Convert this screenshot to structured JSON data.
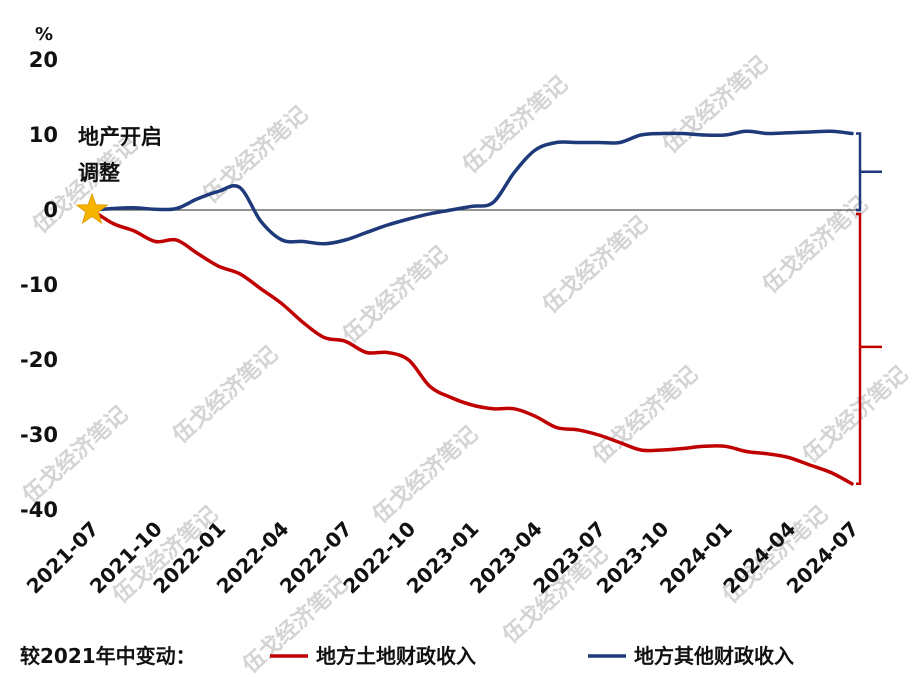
{
  "chart_data": {
    "type": "line",
    "unit": "%",
    "categories": [
      "2021-07",
      "2021-08",
      "2021-09",
      "2021-10",
      "2021-11",
      "2021-12",
      "2022-01",
      "2022-02",
      "2022-03",
      "2022-04",
      "2022-05",
      "2022-06",
      "2022-07",
      "2022-08",
      "2022-09",
      "2022-10",
      "2022-11",
      "2022-12",
      "2023-01",
      "2023-02",
      "2023-03",
      "2023-04",
      "2023-05",
      "2023-06",
      "2023-07",
      "2023-08",
      "2023-09",
      "2023-10",
      "2023-11",
      "2023-12",
      "2024-01",
      "2024-02",
      "2024-03",
      "2024-04",
      "2024-05",
      "2024-06",
      "2024-07"
    ],
    "x_tick_labels": [
      "2021-07",
      "2021-10",
      "2022-01",
      "2022-04",
      "2022-07",
      "2022-10",
      "2023-01",
      "2023-04",
      "2023-07",
      "2023-10",
      "2024-01",
      "2024-04",
      "2024-07"
    ],
    "ylim": [
      -40,
      20
    ],
    "y_ticks": [
      20,
      10,
      0,
      -10,
      -20,
      -30,
      -40
    ],
    "series": [
      {
        "name": "地方土地财政收入",
        "color": "#c00000",
        "values": [
          0,
          -1.8,
          -2.8,
          -4.2,
          -4.0,
          -5.8,
          -7.5,
          -8.5,
          -10.5,
          -12.5,
          -15,
          -17,
          -17.5,
          -19,
          -19,
          -20,
          -23.5,
          -25,
          -26,
          -26.5,
          -26.5,
          -27.5,
          -29,
          -29.3,
          -30,
          -31,
          -32,
          -32,
          -31.8,
          -31.5,
          -31.5,
          -32.2,
          -32.5,
          -33,
          -34,
          -35,
          -36.5
        ]
      },
      {
        "name": "地方其他财政收入",
        "color": "#1f3a7a",
        "values": [
          0,
          0.2,
          0.3,
          0.1,
          0.2,
          1.5,
          2.5,
          3.0,
          -1.5,
          -4.0,
          -4.2,
          -4.5,
          -4.0,
          -3.0,
          -2.0,
          -1.2,
          -0.5,
          0,
          0.5,
          1.0,
          5.0,
          8.0,
          9.0,
          9.0,
          9.0,
          9.0,
          10.0,
          10.2,
          10.2,
          10.0,
          10.0,
          10.5,
          10.2,
          10.3,
          10.4,
          10.5,
          10.2
        ]
      }
    ],
    "annotation": "地产开启调整",
    "annotation_lines": [
      "地产开启",
      "调整"
    ],
    "legend_prefix": "较2021年中变动：",
    "legend_position": "bottom",
    "watermark": "伍戈经济笔记"
  }
}
